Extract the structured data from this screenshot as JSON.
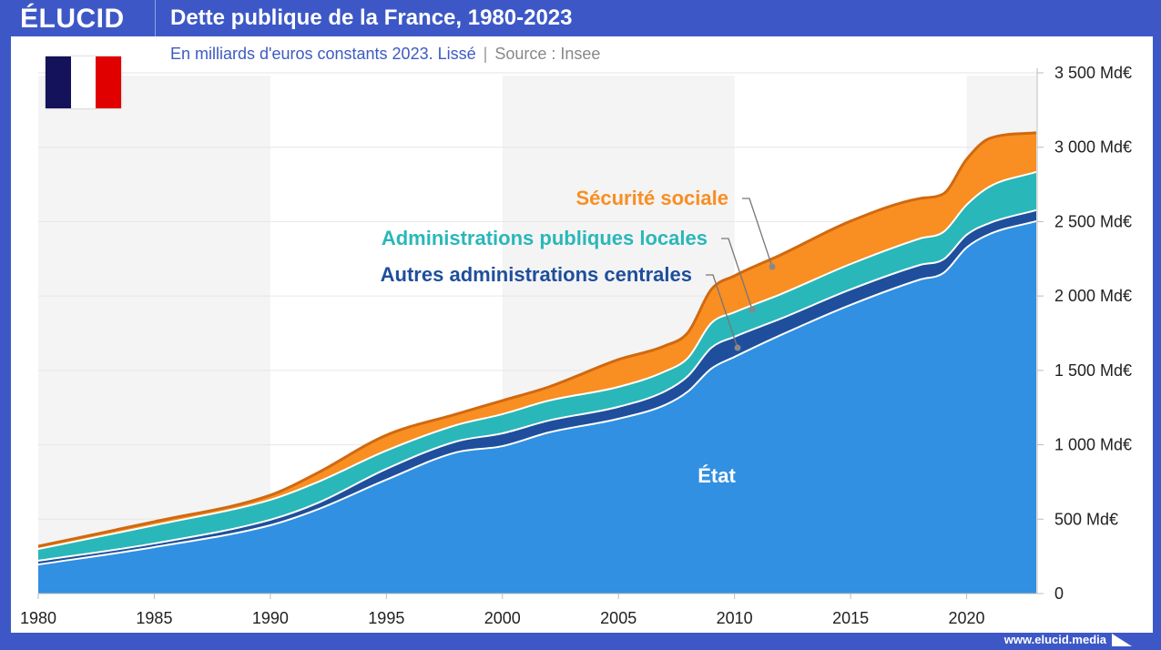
{
  "header": {
    "logo": "ÉLUCID",
    "title": "Dette publique de la France, 1980-2023"
  },
  "subtitle": {
    "text": "En milliards d'euros constants 2023. Lissé",
    "source": "Source : Insee"
  },
  "footer": {
    "url": "www.elucid.media"
  },
  "flag": {
    "colors": [
      "#13125a",
      "#ffffff",
      "#e00000"
    ]
  },
  "chart_data": {
    "type": "area",
    "stacked": true,
    "smoothed": true,
    "title": "Dette publique de la France, 1980-2023",
    "ylabel": "",
    "xlabel": "",
    "xlim": [
      1980,
      2023
    ],
    "ylim": [
      0,
      3500
    ],
    "x_ticks": [
      "1980",
      "1985",
      "1990",
      "1995",
      "2000",
      "2005",
      "2010",
      "2015",
      "2020"
    ],
    "y_ticks": [
      "0",
      "500 Md€",
      "1 000 Md€",
      "1 500 Md€",
      "2 000 Md€",
      "2 500 Md€",
      "3 000 Md€",
      "3 500 Md€"
    ],
    "grid": true,
    "shaded_decades": [
      [
        1980,
        1990
      ],
      [
        2000,
        2010
      ],
      [
        2020,
        2023
      ]
    ],
    "x": [
      1980,
      1985,
      1990,
      1992,
      1995,
      1998,
      2000,
      2002,
      2005,
      2007,
      2008,
      2009,
      2010,
      2012,
      2015,
      2018,
      2019,
      2020,
      2021,
      2023
    ],
    "series": [
      {
        "name": "État",
        "color": "#3190e1",
        "values": [
          195,
          312,
          459,
          563,
          765,
          949,
          991,
          1083,
          1175,
          1267,
          1359,
          1512,
          1591,
          1738,
          1940,
          2111,
          2154,
          2326,
          2417,
          2503
        ]
      },
      {
        "name": "Autres administrations centrales",
        "color": "#1f4e9c",
        "values": [
          25,
          25,
          37,
          43,
          73,
          73,
          86,
          80,
          80,
          92,
          104,
          140,
          135,
          110,
          104,
          98,
          92,
          85,
          74,
          74
        ]
      },
      {
        "name": "Administrations publiques locales",
        "color": "#2ab7b9",
        "values": [
          80,
          122,
          134,
          141,
          123,
          110,
          129,
          134,
          134,
          134,
          122,
          166,
          165,
          165,
          171,
          178,
          184,
          202,
          245,
          257
        ]
      },
      {
        "name": "Sécurité sociale",
        "color": "#f98e22",
        "values": [
          18,
          24,
          31,
          61,
          104,
          74,
          91,
          92,
          184,
          172,
          171,
          226,
          245,
          264,
          288,
          269,
          257,
          306,
          324,
          263
        ]
      }
    ]
  }
}
